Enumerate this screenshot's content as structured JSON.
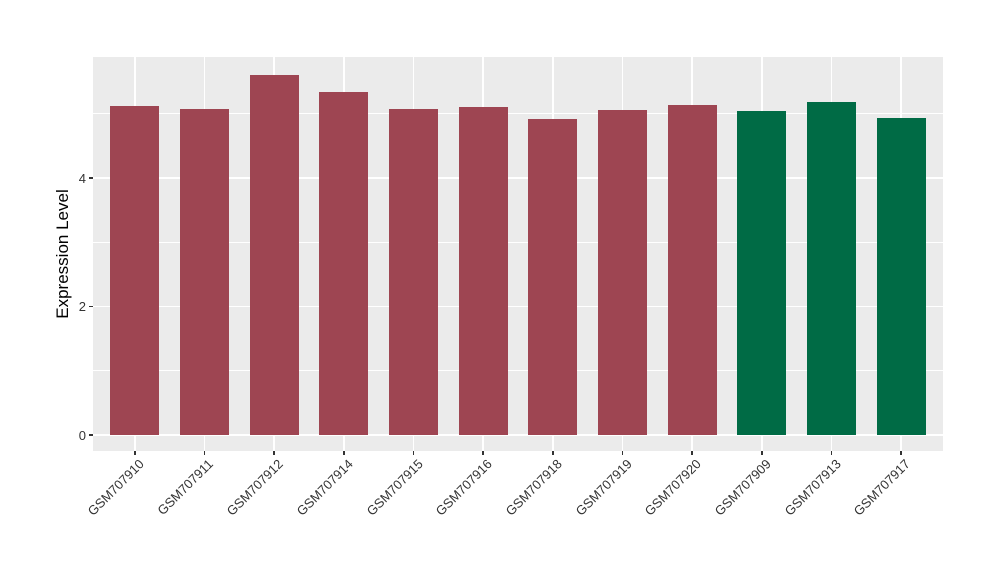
{
  "chart_data": {
    "type": "bar",
    "title": "",
    "xlabel": "",
    "ylabel": "Expression Level",
    "categories": [
      "GSM707910",
      "GSM707911",
      "GSM707912",
      "GSM707914",
      "GSM707915",
      "GSM707916",
      "GSM707918",
      "GSM707919",
      "GSM707920",
      "GSM707909",
      "GSM707913",
      "GSM707917"
    ],
    "values": [
      5.12,
      5.07,
      5.61,
      5.34,
      5.07,
      5.11,
      4.92,
      5.06,
      5.14,
      5.05,
      5.19,
      4.94
    ],
    "bar_colors": [
      "#9E4552",
      "#9E4552",
      "#9E4552",
      "#9E4552",
      "#9E4552",
      "#9E4552",
      "#9E4552",
      "#9E4552",
      "#9E4552",
      "#006B45",
      "#006B45",
      "#006B45"
    ],
    "y_ticks": [
      0,
      2,
      4
    ],
    "y_minor_gridlines": [
      1,
      3,
      5
    ],
    "ylim": [
      -0.25,
      5.88
    ],
    "grid": "on",
    "legend": "none",
    "x_label_angle_deg": 45,
    "colors": {
      "figure_background": "#FFFFFF",
      "panel_background": "#EBEBEB",
      "gridline": "#FFFFFF",
      "bar_red": "#9E4552",
      "bar_green": "#006B45",
      "axis_text": "#333333",
      "axis_title": "#000000",
      "tick_mark": "#333333"
    }
  }
}
